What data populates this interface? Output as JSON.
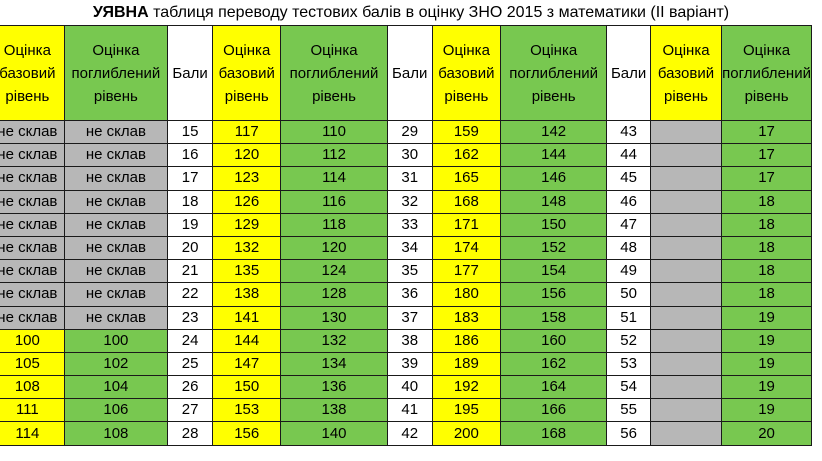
{
  "title": {
    "bold": "УЯВНА",
    "rest": " таблиця переводу тестових балів в оцінку ЗНО 2015 з математики (ІІ варіант)"
  },
  "headers": {
    "basic": "Оцінка базовий рівень",
    "advanced": "Оцінка поглиблений рівень",
    "score": "Бали"
  },
  "colors": {
    "basic_fill": "#ffff00",
    "advanced_fill": "#78c850",
    "fail_fill": "#b7b7b7",
    "score_fill": "#ffffff"
  },
  "fail_label": "не склав",
  "group1": {
    "basic": [
      "не склав",
      "не склав",
      "не склав",
      "не склав",
      "не склав",
      "не склав",
      "не склав",
      "не склав",
      "100",
      "105",
      "108",
      "111",
      "114"
    ],
    "advanced": [
      "не склав",
      "не склав",
      "не склав",
      "не склав",
      "не склав",
      "не склав",
      "не склав",
      "не склав",
      "100",
      "102",
      "104",
      "106",
      "108"
    ]
  },
  "group2": {
    "scores": [
      "15",
      "16",
      "17",
      "18",
      "19",
      "20",
      "21",
      "22",
      "23",
      "24",
      "25",
      "26",
      "27",
      "28"
    ],
    "basic": [
      "117",
      "120",
      "123",
      "126",
      "129",
      "132",
      "135",
      "138",
      "141",
      "144",
      "147",
      "150",
      "153",
      "156"
    ],
    "advanced": [
      "110",
      "112",
      "114",
      "116",
      "118",
      "120",
      "124",
      "128",
      "130",
      "132",
      "134",
      "136",
      "138",
      "140"
    ]
  },
  "group3": {
    "scores": [
      "29",
      "30",
      "31",
      "32",
      "33",
      "34",
      "35",
      "36",
      "37",
      "38",
      "39",
      "40",
      "41",
      "42"
    ],
    "basic": [
      "159",
      "162",
      "165",
      "168",
      "171",
      "174",
      "177",
      "180",
      "183",
      "186",
      "189",
      "192",
      "195",
      "200"
    ],
    "advanced": [
      "142",
      "144",
      "146",
      "148",
      "150",
      "152",
      "154",
      "156",
      "158",
      "160",
      "162",
      "164",
      "166",
      "168"
    ]
  },
  "group4": {
    "scores": [
      "43",
      "44",
      "45",
      "46",
      "47",
      "48",
      "49",
      "50",
      "51",
      "52",
      "53",
      "54",
      "55",
      "56"
    ],
    "basic": [
      "",
      "",
      "",
      "",
      "",
      "",
      "",
      "",
      "",
      "",
      "",
      "",
      "",
      ""
    ],
    "advanced": [
      "17",
      "17",
      "17",
      "18",
      "18",
      "18",
      "18",
      "18",
      "19",
      "19",
      "19",
      "19",
      "19",
      "20"
    ]
  }
}
